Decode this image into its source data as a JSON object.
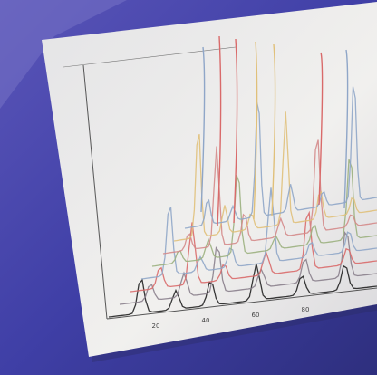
{
  "photo": {
    "x_axis_labels": [
      "20",
      "40",
      "60",
      "80"
    ]
  }
}
